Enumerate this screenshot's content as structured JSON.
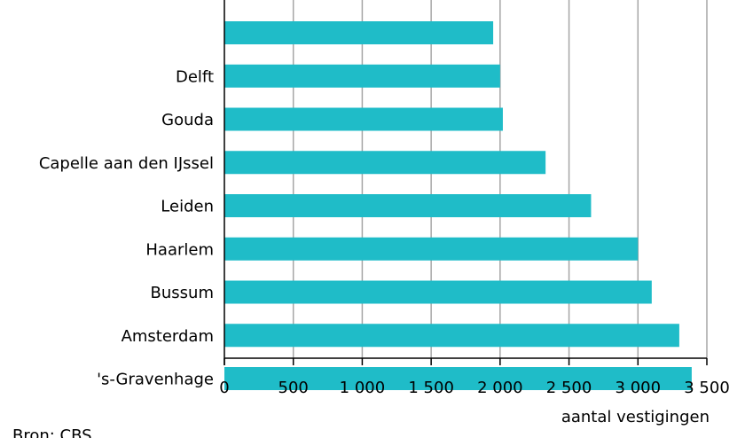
{
  "chart_data": {
    "type": "bar",
    "orientation": "horizontal",
    "categories": [
      "",
      "Delft",
      "Gouda",
      "Capelle aan den IJssel",
      "Leiden",
      "Haarlem",
      "Bussum",
      "Amsterdam",
      "'s-Gravenhage"
    ],
    "values": [
      1950,
      2000,
      2020,
      2330,
      2660,
      3000,
      3100,
      3300,
      3390
    ],
    "xlabel": "aantal vestigingen",
    "xlim": [
      0,
      3500
    ],
    "ticks": [
      {
        "value": 0,
        "label": "0"
      },
      {
        "value": 500,
        "label": "500"
      },
      {
        "value": 1000,
        "label": "1 000"
      },
      {
        "value": 1500,
        "label": "1 500"
      },
      {
        "value": 2000,
        "label": "2 000"
      },
      {
        "value": 2500,
        "label": "2 500"
      },
      {
        "value": 3000,
        "label": "3 000"
      },
      {
        "value": 3500,
        "label": "3 500"
      }
    ],
    "grid": true,
    "colors": {
      "bar": "#1fbcc8",
      "grid": "#a6a6a6",
      "axis": "#000000"
    }
  },
  "source": "Bron: CBS"
}
